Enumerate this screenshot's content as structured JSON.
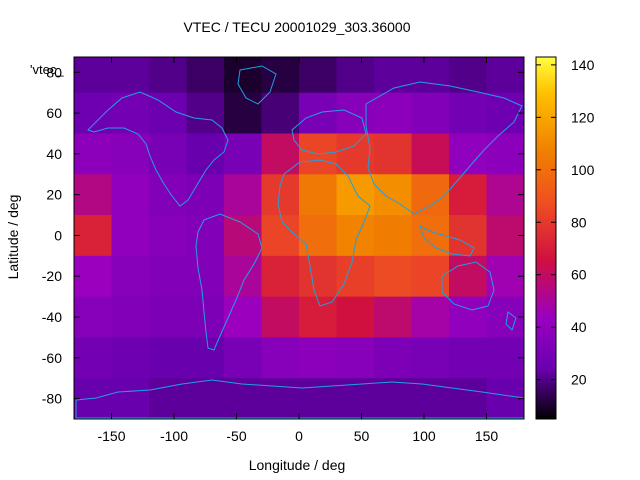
{
  "chart_data": {
    "type": "heatmap",
    "title": "VTEC / TECU 20001029_303.36000",
    "xlabel": "Longitude / deg",
    "ylabel": "Latitude / deg",
    "key_label": "'vtec_",
    "xlim": [
      -180,
      180
    ],
    "ylim": [
      -90,
      87.5
    ],
    "x_ticks": [
      -150,
      -100,
      -50,
      0,
      50,
      100,
      150
    ],
    "y_ticks": [
      -80,
      -60,
      -40,
      -20,
      0,
      20,
      40,
      60,
      80
    ],
    "colorbar": {
      "range": [
        5,
        143
      ],
      "ticks": [
        20,
        40,
        60,
        80,
        100,
        120,
        140
      ]
    },
    "grid": false,
    "legend_position": "top-left",
    "coastlines_color": "#1fa0e0",
    "colormap": [
      "#000000",
      "#6a00b0",
      "#9a00c0",
      "#d01040",
      "#f05020",
      "#f08000",
      "#ffc000",
      "#ffff40"
    ],
    "x_centers": [
      -165,
      -135,
      -105,
      -75,
      -45,
      -15,
      15,
      45,
      75,
      105,
      135,
      165
    ],
    "y_centers": [
      80,
      60,
      40,
      20,
      0,
      -20,
      -40,
      -60,
      -80
    ],
    "values": [
      [
        22,
        22,
        20,
        16,
        10,
        12,
        16,
        20,
        22,
        22,
        20,
        22
      ],
      [
        26,
        28,
        25,
        20,
        12,
        18,
        30,
        36,
        38,
        34,
        28,
        26
      ],
      [
        38,
        36,
        30,
        24,
        30,
        60,
        84,
        80,
        78,
        62,
        40,
        38
      ],
      [
        54,
        40,
        34,
        32,
        50,
        80,
        104,
        116,
        112,
        98,
        70,
        52
      ],
      [
        72,
        40,
        36,
        34,
        56,
        84,
        100,
        108,
        106,
        100,
        78,
        58
      ],
      [
        44,
        36,
        34,
        34,
        50,
        72,
        78,
        82,
        86,
        84,
        60,
        46
      ],
      [
        36,
        34,
        32,
        32,
        44,
        60,
        70,
        66,
        58,
        48,
        40,
        36
      ],
      [
        28,
        26,
        24,
        24,
        30,
        36,
        38,
        36,
        32,
        30,
        28,
        28
      ],
      [
        24,
        24,
        22,
        22,
        22,
        22,
        22,
        22,
        22,
        22,
        22,
        24
      ]
    ]
  }
}
